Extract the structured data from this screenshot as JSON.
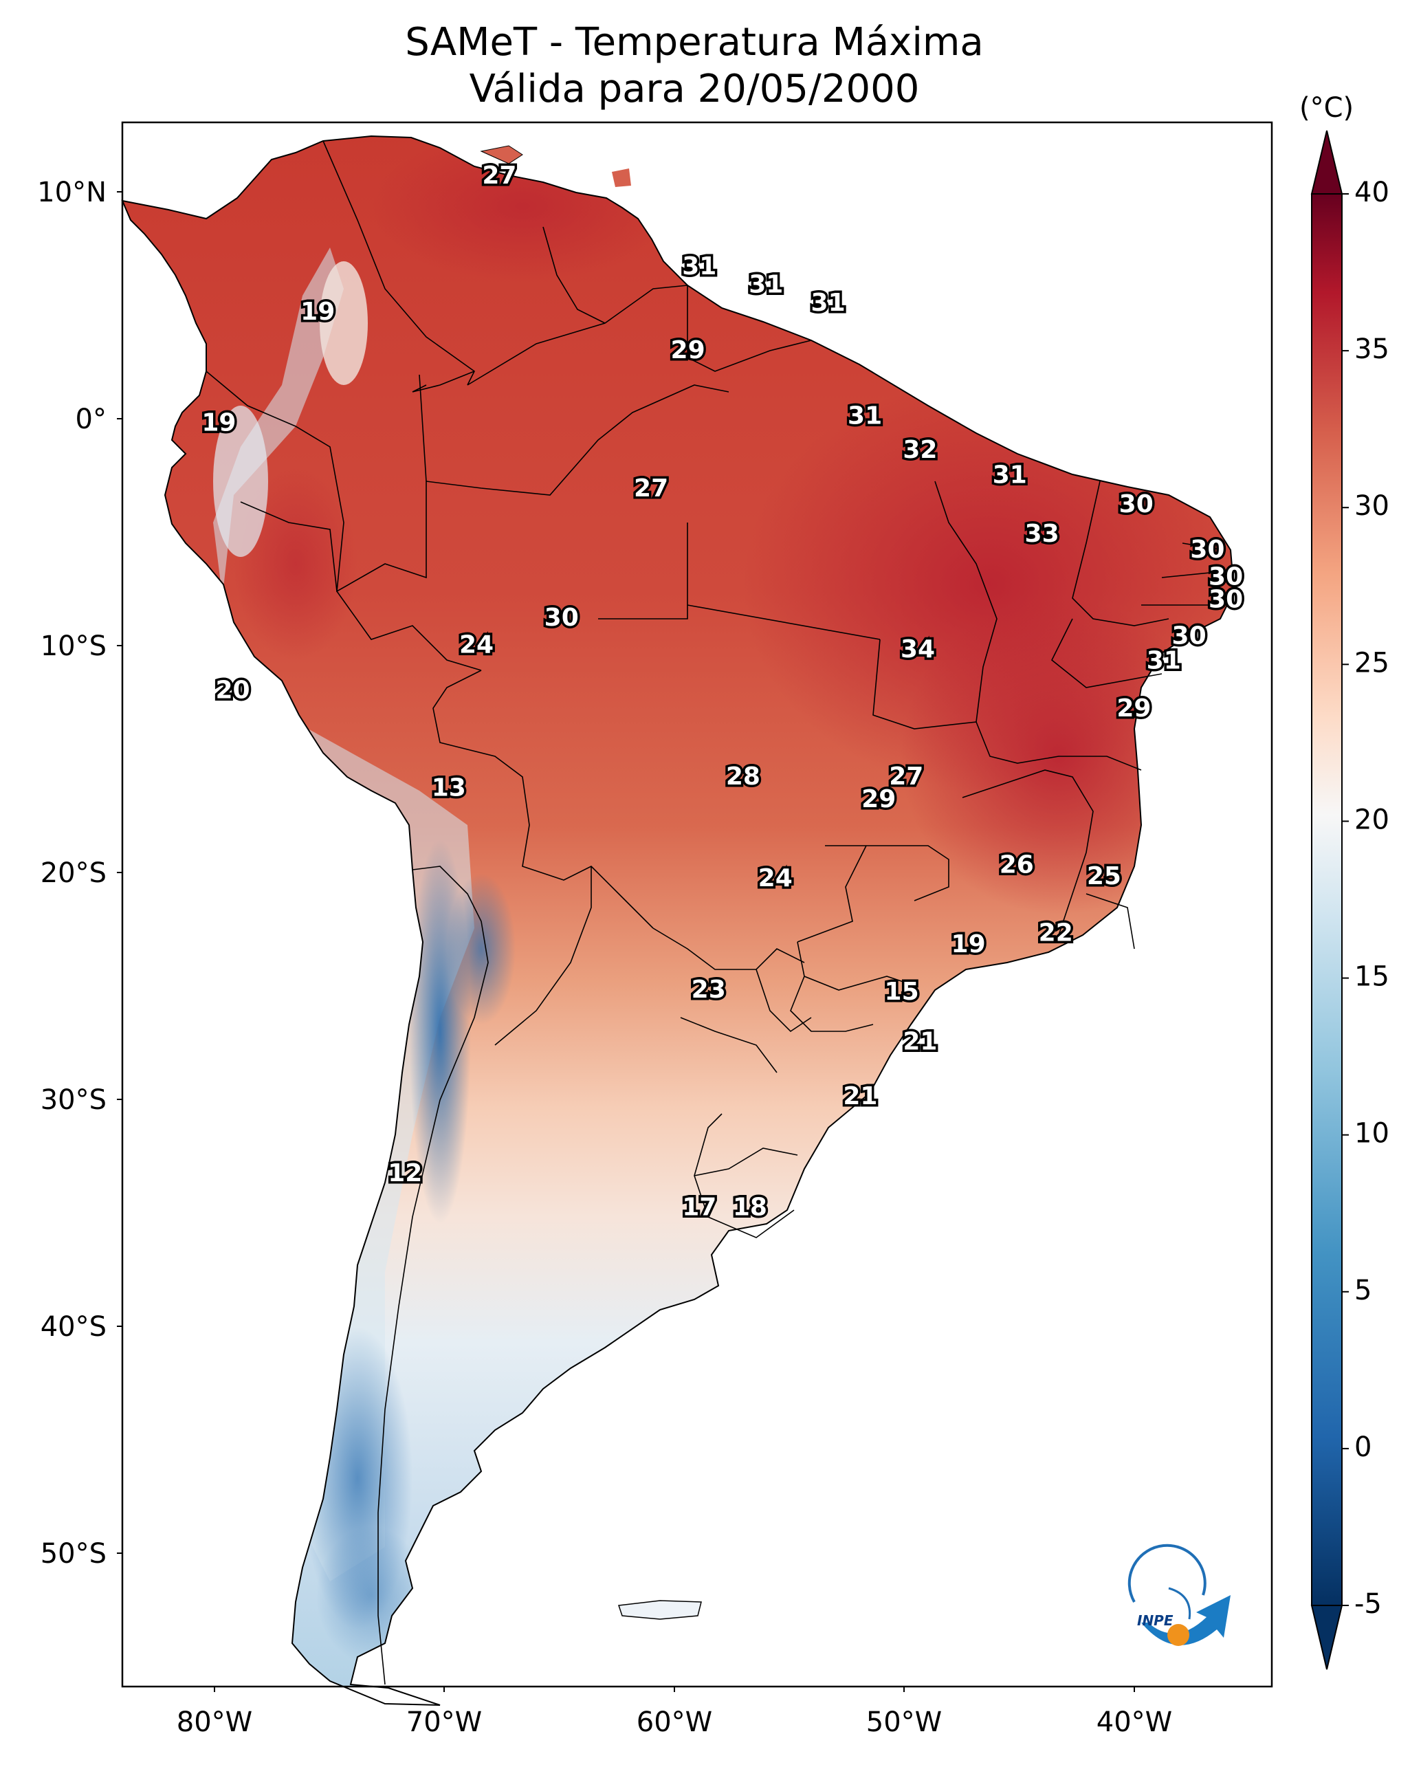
{
  "title": {
    "line1": "SAMeT - Temperatura Máxima",
    "line2": "Válida para 20/05/2000"
  },
  "colorbar": {
    "unit": "(°C)",
    "min": -5,
    "max": 40,
    "ticks": [
      "40",
      "35",
      "30",
      "25",
      "20",
      "15",
      "10",
      "5",
      "0",
      "-5"
    ],
    "colors": {
      "t40": "#67001f",
      "t35": "#b2182b",
      "t30": "#d6604d",
      "t25": "#f4a582",
      "t20": "#fddbc7",
      "t17": "#f7f7f7",
      "t12": "#d1e5f0",
      "t5": "#92c5de",
      "t0": "#4393c3",
      "tm5": "#2166ac",
      "tm8": "#053061"
    }
  },
  "axes": {
    "lat_labels": [
      "10°N",
      "0°",
      "10°S",
      "20°S",
      "30°S",
      "40°S",
      "50°S"
    ],
    "lon_labels": [
      "80°W",
      "70°W",
      "60°W",
      "50°W",
      "40°W"
    ]
  },
  "map_data": {
    "extent": {
      "lon": [
        -83,
        -33
      ],
      "lat": [
        -56,
        13
      ]
    },
    "temperature_labels": [
      {
        "lon": -66.6,
        "lat": 10.6,
        "value": "27"
      },
      {
        "lon": -74.5,
        "lat": 4.6,
        "value": "19"
      },
      {
        "lon": -57.9,
        "lat": 6.6,
        "value": "31"
      },
      {
        "lon": -55.0,
        "lat": 5.8,
        "value": "31"
      },
      {
        "lon": -52.3,
        "lat": 5.0,
        "value": "31"
      },
      {
        "lon": -58.4,
        "lat": 2.9,
        "value": "29"
      },
      {
        "lon": -78.8,
        "lat": -0.3,
        "value": "19"
      },
      {
        "lon": -50.7,
        "lat": 0.0,
        "value": "31"
      },
      {
        "lon": -48.3,
        "lat": -1.5,
        "value": "32"
      },
      {
        "lon": -44.4,
        "lat": -2.6,
        "value": "31"
      },
      {
        "lon": -60.0,
        "lat": -3.2,
        "value": "27"
      },
      {
        "lon": -38.9,
        "lat": -3.9,
        "value": "30"
      },
      {
        "lon": -43.0,
        "lat": -5.2,
        "value": "33"
      },
      {
        "lon": -35.8,
        "lat": -5.9,
        "value": "30"
      },
      {
        "lon": -35.0,
        "lat": -7.1,
        "value": "30"
      },
      {
        "lon": -35.0,
        "lat": -8.1,
        "value": "30"
      },
      {
        "lon": -63.9,
        "lat": -8.9,
        "value": "30"
      },
      {
        "lon": -36.6,
        "lat": -9.7,
        "value": "30"
      },
      {
        "lon": -67.6,
        "lat": -10.1,
        "value": "24"
      },
      {
        "lon": -48.4,
        "lat": -10.3,
        "value": "34"
      },
      {
        "lon": -37.7,
        "lat": -10.8,
        "value": "31"
      },
      {
        "lon": -78.2,
        "lat": -12.1,
        "value": "20"
      },
      {
        "lon": -39.0,
        "lat": -12.9,
        "value": "29"
      },
      {
        "lon": -56.0,
        "lat": -15.9,
        "value": "28"
      },
      {
        "lon": -48.9,
        "lat": -15.9,
        "value": "27"
      },
      {
        "lon": -50.1,
        "lat": -16.9,
        "value": "29"
      },
      {
        "lon": -68.8,
        "lat": -16.4,
        "value": "13"
      },
      {
        "lon": -44.1,
        "lat": -19.8,
        "value": "26"
      },
      {
        "lon": -54.6,
        "lat": -20.4,
        "value": "24"
      },
      {
        "lon": -40.3,
        "lat": -20.3,
        "value": "25"
      },
      {
        "lon": -42.4,
        "lat": -22.8,
        "value": "22"
      },
      {
        "lon": -46.2,
        "lat": -23.3,
        "value": "19"
      },
      {
        "lon": -57.5,
        "lat": -25.3,
        "value": "23"
      },
      {
        "lon": -49.1,
        "lat": -25.4,
        "value": "15"
      },
      {
        "lon": -48.3,
        "lat": -27.6,
        "value": "21"
      },
      {
        "lon": -50.9,
        "lat": -30.0,
        "value": "21"
      },
      {
        "lon": -70.7,
        "lat": -33.4,
        "value": "12"
      },
      {
        "lon": -57.9,
        "lat": -34.9,
        "value": "17"
      },
      {
        "lon": -55.7,
        "lat": -34.9,
        "value": "18"
      }
    ]
  },
  "logo": {
    "text": "INPE"
  }
}
